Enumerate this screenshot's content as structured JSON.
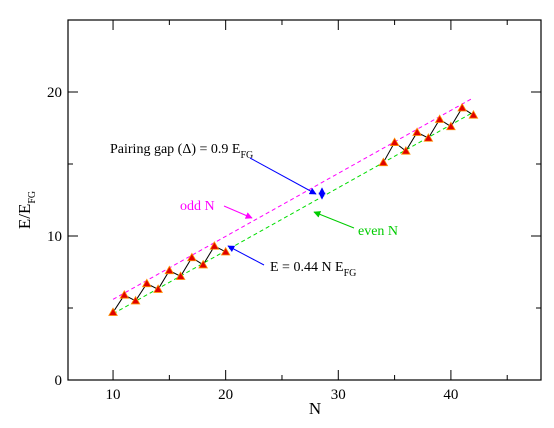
{
  "chart_data": {
    "type": "scatter",
    "xlabel": "N",
    "ylabel": {
      "main": "E/E",
      "sub": "FG"
    },
    "xlim": [
      6,
      48
    ],
    "ylim": [
      0,
      25
    ],
    "x_ticks": [
      "10",
      "20",
      "30",
      "40"
    ],
    "x_tick_values": [
      10,
      20,
      30,
      40
    ],
    "y_ticks": [
      "0",
      "10",
      "20"
    ],
    "y_tick_values": [
      0,
      10,
      20
    ],
    "grid": false,
    "series": [
      {
        "values": [
          [
            10,
            4.7
          ],
          [
            11,
            5.9
          ],
          [
            12,
            5.5
          ],
          [
            13,
            6.7
          ],
          [
            14,
            6.3
          ],
          [
            15,
            7.6
          ],
          [
            16,
            7.2
          ],
          [
            17,
            8.5
          ],
          [
            18,
            8.0
          ],
          [
            19,
            9.3
          ],
          [
            20,
            8.9
          ],
          [
            34,
            15.1
          ],
          [
            35,
            16.5
          ],
          [
            36,
            15.9
          ],
          [
            37,
            17.2
          ],
          [
            38,
            16.8
          ],
          [
            39,
            18.1
          ],
          [
            40,
            17.6
          ],
          [
            41,
            18.9
          ],
          [
            42,
            18.4
          ]
        ],
        "marker_color": "#e00000",
        "marker_edge": "#ff8c00",
        "line_color": "#000000"
      }
    ],
    "fits": [
      {
        "x": [
          10,
          42
        ],
        "y": [
          5.6,
          19.6
        ],
        "color": "#ff00ff",
        "style": "dashed"
      },
      {
        "x": [
          10,
          42
        ],
        "y": [
          4.6,
          18.6
        ],
        "color": "#00dd00",
        "style": "dashed"
      }
    ],
    "annotations": {
      "pairing_gap": {
        "text": "Pairing gap (Δ) = 0.9 E",
        "sub": "FG",
        "arrow_color": "#0000ff"
      },
      "odd_n": {
        "text": "odd N",
        "color": "#ff00ff"
      },
      "even_n": {
        "text": "even N",
        "color": "#00cc00"
      },
      "energy_fit": {
        "text": "E = 0.44 N E",
        "sub": "FG",
        "arrow_color": "#0000ff"
      }
    }
  }
}
